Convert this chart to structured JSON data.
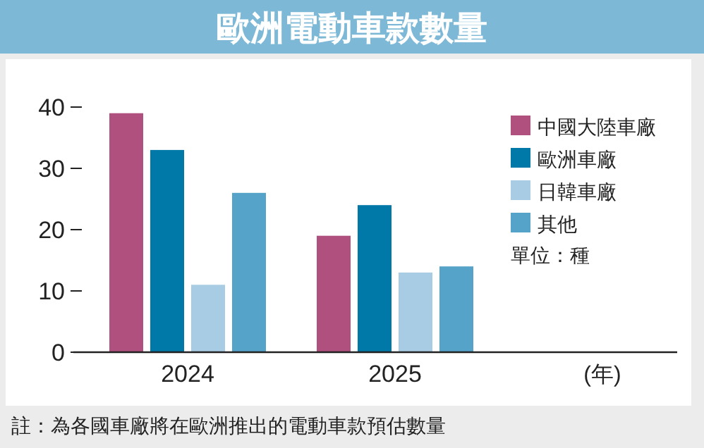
{
  "chart_data": {
    "type": "bar",
    "title": "歐洲電動車款數量",
    "xlabel": "(年)",
    "categories": [
      "2024",
      "2025"
    ],
    "series": [
      {
        "name": "中國大陸車廠",
        "color": "#b0507e",
        "values": [
          39,
          19
        ]
      },
      {
        "name": "歐洲車廠",
        "color": "#0078a8",
        "values": [
          33,
          24
        ]
      },
      {
        "name": "日韓車廠",
        "color": "#a8cce4",
        "values": [
          11,
          13
        ]
      },
      {
        "name": "其他",
        "color": "#55a3c8",
        "values": [
          26,
          14
        ]
      }
    ],
    "ylim": [
      0,
      40
    ],
    "yticks": [
      0,
      10,
      20,
      30,
      40
    ],
    "legend": "top right",
    "annotations": [
      "單位：種",
      "註：為各國車廠將在歐洲推出的電動車款預估數量"
    ]
  }
}
